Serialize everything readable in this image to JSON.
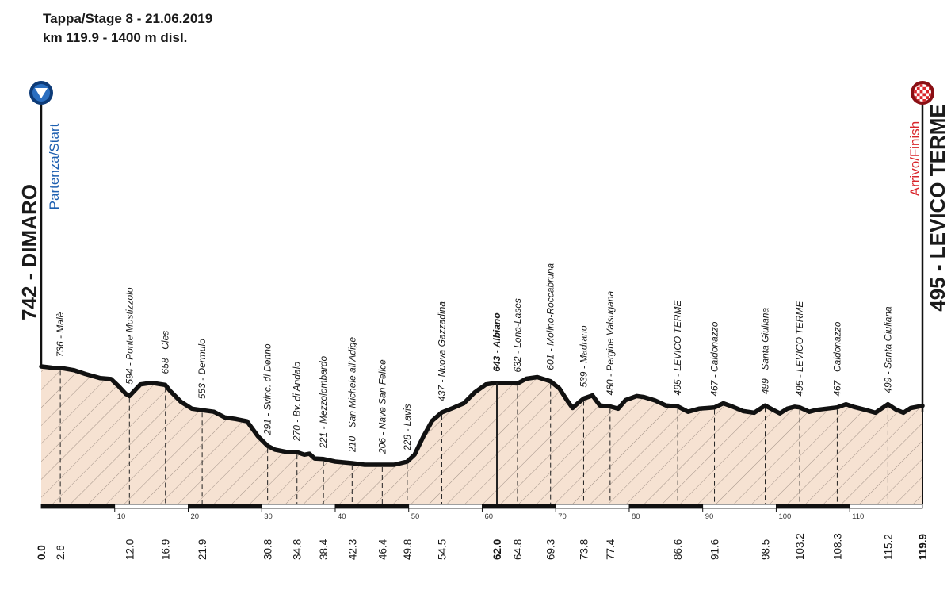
{
  "header": {
    "line1": "Tappa/Stage 8 - 21.06.2019",
    "line2": "km 119.9 - 1400 m disl."
  },
  "start": {
    "title": "742 - DIMARO",
    "subtitle": "Partenza/Start",
    "icon": "start-arrow-icon"
  },
  "finish": {
    "title": "495 - LEVICO TERME",
    "subtitle": "Arrivo/Finish",
    "icon": "checkered-flag-icon"
  },
  "colors": {
    "fill": "#f6e2d2",
    "line": "#111111",
    "start_accent": "#1d5fb0",
    "finish_accent": "#d9262c",
    "hatch": "#9a8a80"
  },
  "chart_data": {
    "type": "area",
    "title": "",
    "xlabel": "",
    "ylabel": "",
    "xlim": [
      0,
      119.9
    ],
    "ylim": [
      150,
      1000
    ],
    "grid": false,
    "profile": [
      [
        0,
        742
      ],
      [
        1.5,
        738
      ],
      [
        3,
        736
      ],
      [
        4.5,
        730
      ],
      [
        6,
        718
      ],
      [
        8,
        705
      ],
      [
        9.5,
        702
      ],
      [
        10.5,
        680
      ],
      [
        11.5,
        655
      ],
      [
        12,
        648
      ],
      [
        13.5,
        685
      ],
      [
        15,
        690
      ],
      [
        16.9,
        683
      ],
      [
        17.5,
        665
      ],
      [
        19,
        630
      ],
      [
        20.5,
        608
      ],
      [
        21.9,
        603
      ],
      [
        23.5,
        598
      ],
      [
        25,
        580
      ],
      [
        26.5,
        575
      ],
      [
        28,
        568
      ],
      [
        29.5,
        520
      ],
      [
        30.8,
        490
      ],
      [
        31.8,
        478
      ],
      [
        33.5,
        470
      ],
      [
        34.8,
        470
      ],
      [
        35.8,
        462
      ],
      [
        36.5,
        465
      ],
      [
        37.2,
        450
      ],
      [
        38.4,
        448
      ],
      [
        40,
        440
      ],
      [
        42.3,
        435
      ],
      [
        44,
        430
      ],
      [
        46.4,
        430
      ],
      [
        48,
        430
      ],
      [
        49.8,
        440
      ],
      [
        50.8,
        462
      ],
      [
        52,
        520
      ],
      [
        53.2,
        570
      ],
      [
        54.5,
        596
      ],
      [
        56,
        610
      ],
      [
        57.5,
        625
      ],
      [
        59,
        660
      ],
      [
        60.5,
        685
      ],
      [
        62,
        690
      ],
      [
        63.5,
        690
      ],
      [
        64.8,
        688
      ],
      [
        66,
        703
      ],
      [
        67.5,
        708
      ],
      [
        69.3,
        695
      ],
      [
        70.5,
        672
      ],
      [
        71.5,
        636
      ],
      [
        72.3,
        610
      ],
      [
        73,
        625
      ],
      [
        73.8,
        640
      ],
      [
        75,
        650
      ],
      [
        76,
        618
      ],
      [
        77.4,
        615
      ],
      [
        78.5,
        608
      ],
      [
        79.5,
        635
      ],
      [
        81,
        648
      ],
      [
        82,
        645
      ],
      [
        83.5,
        634
      ],
      [
        85,
        618
      ],
      [
        86.6,
        615
      ],
      [
        88,
        598
      ],
      [
        89.5,
        608
      ],
      [
        91.6,
        612
      ],
      [
        92.8,
        625
      ],
      [
        94,
        615
      ],
      [
        95.5,
        600
      ],
      [
        97,
        595
      ],
      [
        98.5,
        618
      ],
      [
        99.5,
        605
      ],
      [
        100.5,
        593
      ],
      [
        101.5,
        608
      ],
      [
        102.5,
        614
      ],
      [
        103.2,
        612
      ],
      [
        104.5,
        598
      ],
      [
        105.5,
        604
      ],
      [
        106.5,
        607
      ],
      [
        108.3,
        612
      ],
      [
        109.5,
        622
      ],
      [
        110.5,
        614
      ],
      [
        112,
        605
      ],
      [
        113.5,
        595
      ],
      [
        115.2,
        622
      ],
      [
        116.3,
        605
      ],
      [
        117.3,
        595
      ],
      [
        118.3,
        610
      ],
      [
        119.9,
        617
      ]
    ],
    "km_ticks": [
      10,
      20,
      30,
      40,
      50,
      60,
      70,
      80,
      90,
      100,
      110
    ],
    "markers": [
      {
        "km": "0.0",
        "x": 0,
        "alt": 742,
        "label": "",
        "bold": true
      },
      {
        "km": "2.6",
        "x": 2.6,
        "alt": 736,
        "label": "736 - Malè"
      },
      {
        "km": "12.0",
        "x": 12.0,
        "alt": 650,
        "label": "594 - Ponte Mostizzolo"
      },
      {
        "km": "16.9",
        "x": 16.9,
        "alt": 683,
        "label": "658 - Cles"
      },
      {
        "km": "21.9",
        "x": 21.9,
        "alt": 603,
        "label": "553 - Dermulo"
      },
      {
        "km": "30.8",
        "x": 30.8,
        "alt": 490,
        "label": "291 - Svinc. di Denno"
      },
      {
        "km": "34.8",
        "x": 34.8,
        "alt": 470,
        "label": "270 - Bv. di Andalo"
      },
      {
        "km": "38.4",
        "x": 38.4,
        "alt": 448,
        "label": "221 - Mezzolombardo"
      },
      {
        "km": "42.3",
        "x": 42.3,
        "alt": 435,
        "label": "210 - San Michele all'Adige"
      },
      {
        "km": "46.4",
        "x": 46.4,
        "alt": 430,
        "label": "206 - Nave San Felice"
      },
      {
        "km": "49.8",
        "x": 49.8,
        "alt": 440,
        "label": "228 - Lavis"
      },
      {
        "km": "54.5",
        "x": 54.5,
        "alt": 596,
        "label": "437 - Nuova Gazzadina"
      },
      {
        "km": "62.0",
        "x": 62.0,
        "alt": 690,
        "label": "643 - Albiano",
        "bold": true
      },
      {
        "km": "64.8",
        "x": 64.8,
        "alt": 688,
        "label": "632 - Lona-Lases"
      },
      {
        "km": "69.3",
        "x": 69.3,
        "alt": 695,
        "label": "601 - Molino-Roccabruna"
      },
      {
        "km": "73.8",
        "x": 73.8,
        "alt": 640,
        "label": "539 - Madrano"
      },
      {
        "km": "77.4",
        "x": 77.4,
        "alt": 615,
        "label": "480 - Pergine Valsugana"
      },
      {
        "km": "86.6",
        "x": 86.6,
        "alt": 615,
        "label": "495 - LEVICO TERME"
      },
      {
        "km": "91.6",
        "x": 91.6,
        "alt": 612,
        "label": "467 - Caldonazzo"
      },
      {
        "km": "98.5",
        "x": 98.5,
        "alt": 618,
        "label": "499 - Santa Giuliana"
      },
      {
        "km": "103.2",
        "x": 103.2,
        "alt": 612,
        "label": "495 - LEVICO TERME"
      },
      {
        "km": "108.3",
        "x": 108.3,
        "alt": 612,
        "label": "467 - Caldonazzo"
      },
      {
        "km": "115.2",
        "x": 115.2,
        "alt": 622,
        "label": "499 - Santa Giuliana"
      },
      {
        "km": "119.9",
        "x": 119.9,
        "alt": 617,
        "label": "",
        "bold": true
      }
    ]
  }
}
